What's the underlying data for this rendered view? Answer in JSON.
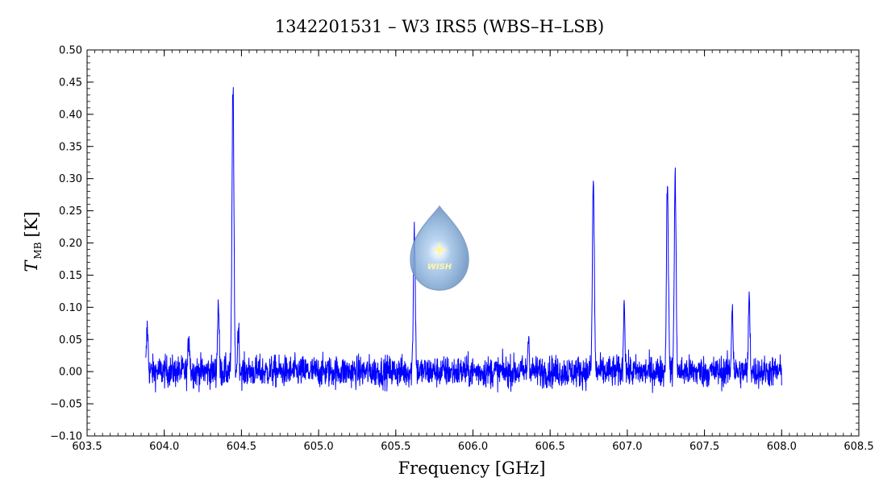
{
  "chart_data": {
    "type": "line",
    "title": "1342201531 – W3 IRS5 (WBS–H–LSB)",
    "xlabel": "Frequency [GHz]",
    "ylabel": "T",
    "ylabel_subscript": "MB",
    "ylabel_unit": "[K]",
    "xlim": [
      603.5,
      608.5
    ],
    "ylim": [
      -0.1,
      0.5
    ],
    "x_ticks": [
      603.5,
      604.0,
      604.5,
      605.0,
      605.5,
      606.0,
      606.5,
      607.0,
      607.5,
      608.0,
      608.5
    ],
    "x_tick_labels": [
      "603.5",
      "604.0",
      "604.5",
      "605.0",
      "605.5",
      "606.0",
      "606.5",
      "607.0",
      "607.5",
      "608.0",
      "608.5"
    ],
    "y_ticks": [
      -0.1,
      -0.05,
      0.0,
      0.05,
      0.1,
      0.15,
      0.2,
      0.25,
      0.3,
      0.35,
      0.4,
      0.45,
      0.5
    ],
    "y_tick_labels": [
      "−0.10",
      "−0.05",
      "0.00",
      "0.05",
      "0.10",
      "0.15",
      "0.20",
      "0.25",
      "0.30",
      "0.35",
      "0.40",
      "0.45",
      "0.50"
    ],
    "grid": false,
    "series": [
      {
        "color": "#0000ff",
        "x_range": [
          603.88,
          608.0
        ],
        "baseline": 0.0,
        "noise_rms": 0.012,
        "peaks": [
          {
            "x": 603.89,
            "y": 0.07
          },
          {
            "x": 604.16,
            "y": 0.06
          },
          {
            "x": 604.35,
            "y": 0.11
          },
          {
            "x": 604.445,
            "y": 0.45
          },
          {
            "x": 604.48,
            "y": 0.07
          },
          {
            "x": 605.62,
            "y": 0.225
          },
          {
            "x": 606.36,
            "y": 0.055
          },
          {
            "x": 606.78,
            "y": 0.3
          },
          {
            "x": 606.98,
            "y": 0.11
          },
          {
            "x": 607.26,
            "y": 0.3
          },
          {
            "x": 607.31,
            "y": 0.3
          },
          {
            "x": 607.68,
            "y": 0.105
          },
          {
            "x": 607.79,
            "y": 0.12
          }
        ]
      }
    ]
  },
  "logo": {
    "text": "WISH",
    "icon": "water-drop-star-icon"
  }
}
